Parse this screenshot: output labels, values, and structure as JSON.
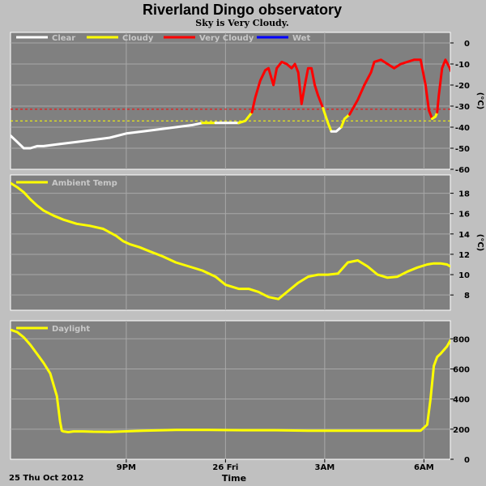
{
  "title": "Riverland Dingo observatory",
  "subtitle": "Sky is Very Cloudy.",
  "x_axis": {
    "title": "Time",
    "start_label": "25 Thu Oct 2012",
    "ticks": [
      {
        "t": 3.5,
        "label": "9PM"
      },
      {
        "t": 6.5,
        "label": "26 Fri"
      },
      {
        "t": 9.5,
        "label": "3AM"
      },
      {
        "t": 12.5,
        "label": "6AM"
      }
    ]
  },
  "chart_data": [
    {
      "type": "line",
      "panel": "sky",
      "unit": "(°C)",
      "ylim": [
        -60,
        5
      ],
      "yticks": [
        0,
        -10,
        -20,
        -30,
        -40,
        -50,
        -60
      ],
      "xlim": [
        0,
        13.3
      ],
      "grid": true,
      "legend": [
        {
          "name": "Clear",
          "color": "#ffffff"
        },
        {
          "name": "Cloudy",
          "color": "#ffff00"
        },
        {
          "name": "Very Cloudy",
          "color": "#ff0000"
        },
        {
          "name": "Wet",
          "color": "#0000ff"
        }
      ],
      "thresholds": [
        {
          "value": -31.5,
          "color": "#ff0000"
        },
        {
          "value": -37,
          "color": "#ffff00"
        }
      ],
      "segments": [
        {
          "condition": "Clear",
          "color": "#ffffff",
          "points": [
            [
              0.0,
              -44
            ],
            [
              0.2,
              -47
            ],
            [
              0.4,
              -50
            ],
            [
              0.6,
              -50
            ],
            [
              0.8,
              -49
            ],
            [
              1.0,
              -49
            ],
            [
              1.5,
              -48
            ],
            [
              2.0,
              -47
            ],
            [
              2.5,
              -46
            ],
            [
              3.0,
              -45
            ],
            [
              3.5,
              -43
            ],
            [
              4.0,
              -42
            ],
            [
              4.5,
              -41
            ],
            [
              5.0,
              -40
            ],
            [
              5.5,
              -39
            ],
            [
              5.8,
              -38
            ]
          ]
        },
        {
          "condition": "Cloudy",
          "color": "#ffff00",
          "points": [
            [
              5.8,
              -38
            ],
            [
              6.0,
              -38
            ],
            [
              6.2,
              -38
            ]
          ]
        },
        {
          "condition": "Clear",
          "color": "#ffffff",
          "points": [
            [
              6.2,
              -38
            ],
            [
              6.5,
              -38
            ],
            [
              6.9,
              -38
            ]
          ]
        },
        {
          "condition": "Cloudy",
          "color": "#ffff00",
          "points": [
            [
              6.9,
              -38
            ],
            [
              7.1,
              -37
            ],
            [
              7.3,
              -33
            ]
          ]
        },
        {
          "condition": "Very Cloudy",
          "color": "#ff0000",
          "points": [
            [
              7.3,
              -33
            ],
            [
              7.4,
              -26
            ],
            [
              7.55,
              -18
            ],
            [
              7.7,
              -13
            ],
            [
              7.8,
              -12
            ],
            [
              7.95,
              -20
            ],
            [
              8.05,
              -12
            ],
            [
              8.2,
              -9
            ],
            [
              8.35,
              -10
            ],
            [
              8.5,
              -12
            ],
            [
              8.6,
              -10
            ],
            [
              8.7,
              -14
            ],
            [
              8.8,
              -29
            ],
            [
              8.9,
              -20
            ],
            [
              9.0,
              -12
            ],
            [
              9.1,
              -12
            ],
            [
              9.2,
              -20
            ],
            [
              9.3,
              -25
            ],
            [
              9.45,
              -31
            ]
          ]
        },
        {
          "condition": "Cloudy",
          "color": "#ffff00",
          "points": [
            [
              9.45,
              -31
            ],
            [
              9.6,
              -38
            ],
            [
              9.7,
              -42
            ]
          ]
        },
        {
          "condition": "Clear",
          "color": "#ffffff",
          "points": [
            [
              9.7,
              -42
            ],
            [
              9.85,
              -42
            ],
            [
              10.0,
              -40
            ]
          ]
        },
        {
          "condition": "Cloudy",
          "color": "#ffff00",
          "points": [
            [
              10.0,
              -40
            ],
            [
              10.1,
              -36
            ],
            [
              10.25,
              -34
            ]
          ]
        },
        {
          "condition": "Very Cloudy",
          "color": "#ff0000",
          "points": [
            [
              10.25,
              -34
            ],
            [
              10.5,
              -27
            ],
            [
              10.7,
              -20
            ],
            [
              10.9,
              -14
            ],
            [
              11.0,
              -9
            ],
            [
              11.2,
              -8
            ],
            [
              11.4,
              -10
            ],
            [
              11.6,
              -12
            ],
            [
              11.8,
              -10
            ],
            [
              12.0,
              -9
            ],
            [
              12.2,
              -8
            ],
            [
              12.4,
              -8
            ],
            [
              12.55,
              -20
            ],
            [
              12.65,
              -32
            ],
            [
              12.75,
              -36
            ]
          ]
        },
        {
          "condition": "Cloudy",
          "color": "#ffff00",
          "points": [
            [
              12.75,
              -36
            ],
            [
              12.85,
              -35
            ],
            [
              12.9,
              -33
            ]
          ]
        },
        {
          "condition": "Very Cloudy",
          "color": "#ff0000",
          "points": [
            [
              12.9,
              -33
            ],
            [
              12.95,
              -25
            ],
            [
              13.05,
              -12
            ],
            [
              13.15,
              -8
            ],
            [
              13.25,
              -11
            ],
            [
              13.4,
              -16
            ],
            [
              13.55,
              -21
            ]
          ]
        }
      ]
    },
    {
      "type": "line",
      "panel": "ambient",
      "unit": "(°C)",
      "ylim": [
        6.5,
        19.8
      ],
      "yticks": [
        8,
        10,
        12,
        14,
        16,
        18
      ],
      "xlim": [
        0,
        13.3
      ],
      "grid": true,
      "series": [
        {
          "name": "Ambient Temp",
          "color": "#ffff00",
          "x": [
            0.0,
            0.2,
            0.4,
            0.6,
            0.8,
            1.0,
            1.3,
            1.6,
            2.0,
            2.4,
            2.8,
            3.2,
            3.4,
            3.6,
            3.9,
            4.2,
            4.6,
            5.0,
            5.4,
            5.8,
            6.2,
            6.5,
            6.9,
            7.2,
            7.5,
            7.8,
            8.1,
            8.4,
            8.7,
            9.0,
            9.3,
            9.6,
            9.9,
            10.2,
            10.5,
            10.8,
            11.1,
            11.4,
            11.7,
            12.0,
            12.3,
            12.6,
            12.8,
            13.0,
            13.2,
            13.55
          ],
          "values": [
            19.0,
            18.6,
            18.1,
            17.4,
            16.8,
            16.3,
            15.8,
            15.4,
            15.0,
            14.8,
            14.5,
            13.8,
            13.3,
            13.0,
            12.7,
            12.3,
            11.8,
            11.2,
            10.8,
            10.4,
            9.8,
            9.0,
            8.6,
            8.6,
            8.3,
            7.8,
            7.6,
            8.4,
            9.2,
            9.8,
            10.0,
            10.0,
            10.1,
            11.2,
            11.4,
            10.8,
            10.0,
            9.7,
            9.8,
            10.3,
            10.7,
            11.0,
            11.1,
            11.1,
            11.0,
            10.3
          ]
        }
      ]
    },
    {
      "type": "line",
      "panel": "daylight",
      "unit": "",
      "ylim": [
        0,
        920
      ],
      "yticks": [
        0,
        200,
        400,
        600,
        800
      ],
      "xlim": [
        0,
        13.3
      ],
      "grid": true,
      "series": [
        {
          "name": "Daylight",
          "color": "#ffff00",
          "x": [
            0.0,
            0.2,
            0.4,
            0.6,
            0.8,
            1.0,
            1.2,
            1.4,
            1.5,
            1.55,
            1.6,
            1.75,
            1.9,
            2.2,
            2.5,
            3.0,
            4.0,
            5.0,
            6.0,
            7.0,
            8.0,
            9.0,
            10.0,
            11.0,
            12.0,
            12.4,
            12.6,
            12.7,
            12.8,
            12.9,
            13.0,
            13.2,
            13.3,
            13.4,
            13.55
          ],
          "values": [
            860,
            845,
            810,
            760,
            700,
            640,
            570,
            420,
            250,
            190,
            185,
            180,
            185,
            185,
            183,
            182,
            190,
            195,
            195,
            193,
            193,
            190,
            190,
            190,
            190,
            190,
            230,
            400,
            620,
            680,
            700,
            750,
            790,
            760,
            790
          ]
        }
      ]
    }
  ]
}
